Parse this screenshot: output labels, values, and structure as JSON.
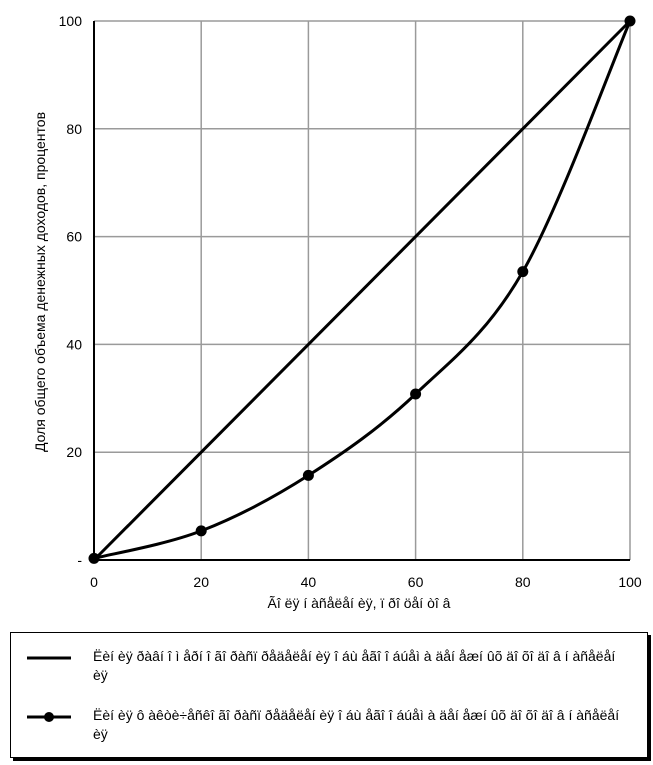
{
  "chart_data": {
    "type": "line",
    "xlabel": "Ãî ëÿ í àñåëåí èÿ, ï ðî öåí òî â",
    "ylabel": "Доля общего объема денежных доходов, процентов",
    "xlim": [
      0,
      100
    ],
    "ylim": [
      0,
      100
    ],
    "x_ticks": [
      "0",
      "20",
      "40",
      "60",
      "80",
      "100"
    ],
    "y_ticks": [
      "-",
      "20",
      "40",
      "60",
      "80",
      "100"
    ],
    "grid": true,
    "legend_position": "bottom",
    "series": [
      {
        "name": "Ëèí èÿ ðàâí î ì åðí î ãî ðàñï ðåäåëåí èÿ î áù åãî î áúåì à äåí åæí ûõ äî õî äî â í àñåëåí èÿ",
        "marker": "none",
        "color": "#000000",
        "x": [
          0,
          100
        ],
        "y": [
          0,
          100
        ]
      },
      {
        "name": "Ëèí èÿ ô àêòè÷åñêî ãî ðàñï ðåäåëåí èÿ î áù åãî î áúåì à äåí åæí ûõ äî õî äî â í àñåëåí èÿ",
        "marker": "circle",
        "color": "#000000",
        "x": [
          0,
          20,
          40,
          60,
          80,
          100
        ],
        "y": [
          0.3,
          5.4,
          15.7,
          30.8,
          53.5,
          100
        ]
      }
    ]
  }
}
